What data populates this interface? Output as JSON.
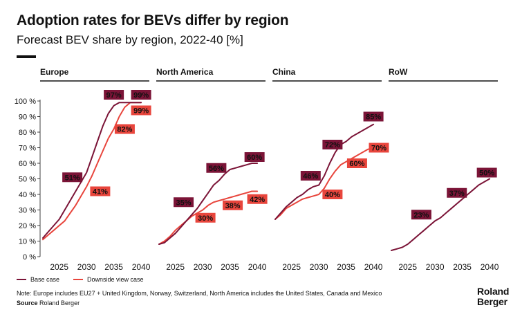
{
  "header": {
    "title": "Adoption rates for BEVs differ by region",
    "subtitle": "Forecast BEV share by region, 2022-40 [%]"
  },
  "legend": {
    "base_label": "Base case",
    "downside_label": "Downside view case"
  },
  "footer": {
    "note": "Note: Europe includes EU27 + United Kingdom, Norway, Switzerland, North America includes the United States, Canada and Mexico",
    "source_label": "Source",
    "source_value": "Roland Berger"
  },
  "logo": {
    "line1": "Roland",
    "line2": "Berger"
  },
  "colors": {
    "base": "#7b1437",
    "downside": "#e8453c",
    "text": "#111111"
  },
  "chart_data": {
    "type": "line",
    "y_ticks": [
      "0 %",
      "10 %",
      "20 %",
      "30 %",
      "40 %",
      "50 %",
      "60 %",
      "70 %",
      "80 %",
      "90 %",
      "100 %"
    ],
    "x_ticks": [
      "2025",
      "2030",
      "2035",
      "2040"
    ],
    "ylim": [
      0,
      100
    ],
    "xlim": [
      2022,
      2041
    ],
    "panels": [
      {
        "name": "Europe",
        "series": [
          {
            "name": "Base case",
            "x": [
              2022,
              2023,
              2024,
              2025,
              2026,
              2027,
              2028,
              2029,
              2030,
              2031,
              2032,
              2033,
              2034,
              2035,
              2036,
              2037,
              2038,
              2039,
              2040
            ],
            "values": [
              12,
              16,
              20,
              24,
              30,
              36,
              42,
              48,
              54,
              64,
              74,
              84,
              92,
              97,
              99,
              99,
              99,
              99,
              99
            ]
          },
          {
            "name": "Downside view case",
            "x": [
              2022,
              2023,
              2024,
              2025,
              2026,
              2027,
              2028,
              2029,
              2030,
              2031,
              2032,
              2033,
              2034,
              2035,
              2036,
              2037,
              2038,
              2039,
              2040
            ],
            "values": [
              11,
              14,
              17,
              20,
              23,
              28,
              33,
              39,
              45,
              52,
              60,
              68,
              76,
              82,
              90,
              96,
              99,
              99,
              99
            ]
          }
        ],
        "labels": [
          {
            "text": "51%",
            "series": "base",
            "x": 2027.4,
            "y": 51
          },
          {
            "text": "97%",
            "series": "base",
            "x": 2035.0,
            "y": 104
          },
          {
            "text": "99%",
            "series": "base",
            "x": 2040.0,
            "y": 104
          },
          {
            "text": "41%",
            "series": "downside",
            "x": 2032.5,
            "y": 42
          },
          {
            "text": "82%",
            "series": "downside",
            "x": 2037.0,
            "y": 82
          },
          {
            "text": "99%",
            "series": "downside",
            "x": 2040.0,
            "y": 94
          }
        ]
      },
      {
        "name": "North America",
        "series": [
          {
            "name": "Base case",
            "x": [
              2022,
              2023,
              2024,
              2025,
              2026,
              2027,
              2028,
              2029,
              2030,
              2031,
              2032,
              2033,
              2034,
              2035,
              2036,
              2037,
              2038,
              2039,
              2040
            ],
            "values": [
              8,
              9,
              12,
              15,
              19,
              23,
              27,
              31,
              36,
              41,
              46,
              49,
              53,
              56,
              57,
              58,
              59,
              60,
              60
            ]
          },
          {
            "name": "Downside view case",
            "x": [
              2022,
              2023,
              2024,
              2025,
              2026,
              2027,
              2028,
              2029,
              2030,
              2031,
              2032,
              2033,
              2034,
              2035,
              2036,
              2037,
              2038,
              2039,
              2040
            ],
            "values": [
              8,
              10,
              13,
              17,
              20,
              23,
              26,
              28,
              30,
              33,
              35,
              36,
              37,
              38,
              39,
              40,
              41,
              42,
              42
            ]
          }
        ],
        "labels": [
          {
            "text": "35%",
            "series": "base",
            "x": 2026.5,
            "y": 35
          },
          {
            "text": "56%",
            "series": "base",
            "x": 2032.5,
            "y": 57
          },
          {
            "text": "60%",
            "series": "base",
            "x": 2039.5,
            "y": 64
          },
          {
            "text": "30%",
            "series": "downside",
            "x": 2030.5,
            "y": 25
          },
          {
            "text": "38%",
            "series": "downside",
            "x": 2035.5,
            "y": 33
          },
          {
            "text": "42%",
            "series": "downside",
            "x": 2040.0,
            "y": 37
          }
        ]
      },
      {
        "name": "China",
        "series": [
          {
            "name": "Base case",
            "x": [
              2022,
              2023,
              2024,
              2025,
              2026,
              2027,
              2028,
              2029,
              2030,
              2031,
              2032,
              2033,
              2034,
              2035,
              2036,
              2037,
              2038,
              2039,
              2040
            ],
            "values": [
              24,
              28,
              32,
              35,
              38,
              40,
              43,
              45,
              46,
              52,
              60,
              67,
              72,
              74,
              77,
              79,
              81,
              83,
              85
            ]
          },
          {
            "name": "Downside view case",
            "x": [
              2022,
              2023,
              2024,
              2025,
              2026,
              2027,
              2028,
              2029,
              2030,
              2031,
              2032,
              2033,
              2034,
              2035,
              2036,
              2037,
              2038,
              2039,
              2040
            ],
            "values": [
              24,
              27,
              31,
              33,
              35,
              37,
              38,
              39,
              40,
              44,
              50,
              55,
              59,
              61,
              63,
              65,
              67,
              69,
              70
            ]
          }
        ],
        "labels": [
          {
            "text": "46%",
            "series": "base",
            "x": 2028.5,
            "y": 52
          },
          {
            "text": "72%",
            "series": "base",
            "x": 2032.5,
            "y": 72
          },
          {
            "text": "85%",
            "series": "base",
            "x": 2040.0,
            "y": 90
          },
          {
            "text": "40%",
            "series": "downside",
            "x": 2032.5,
            "y": 40
          },
          {
            "text": "60%",
            "series": "downside",
            "x": 2037.0,
            "y": 60
          },
          {
            "text": "70%",
            "series": "downside",
            "x": 2041.0,
            "y": 70
          }
        ]
      },
      {
        "name": "RoW",
        "series": [
          {
            "name": "Base case",
            "x": [
              2022,
              2023,
              2024,
              2025,
              2026,
              2027,
              2028,
              2029,
              2030,
              2031,
              2032,
              2033,
              2034,
              2035,
              2036,
              2037,
              2038,
              2039,
              2040
            ],
            "values": [
              4,
              5,
              6,
              8,
              11,
              14,
              17,
              20,
              23,
              25,
              28,
              31,
              34,
              37,
              40,
              43,
              46,
              48,
              50
            ]
          }
        ],
        "labels": [
          {
            "text": "23%",
            "series": "base",
            "x": 2027.5,
            "y": 27
          },
          {
            "text": "37%",
            "series": "base",
            "x": 2034.0,
            "y": 41
          },
          {
            "text": "50%",
            "series": "base",
            "x": 2039.5,
            "y": 54
          }
        ]
      }
    ]
  }
}
